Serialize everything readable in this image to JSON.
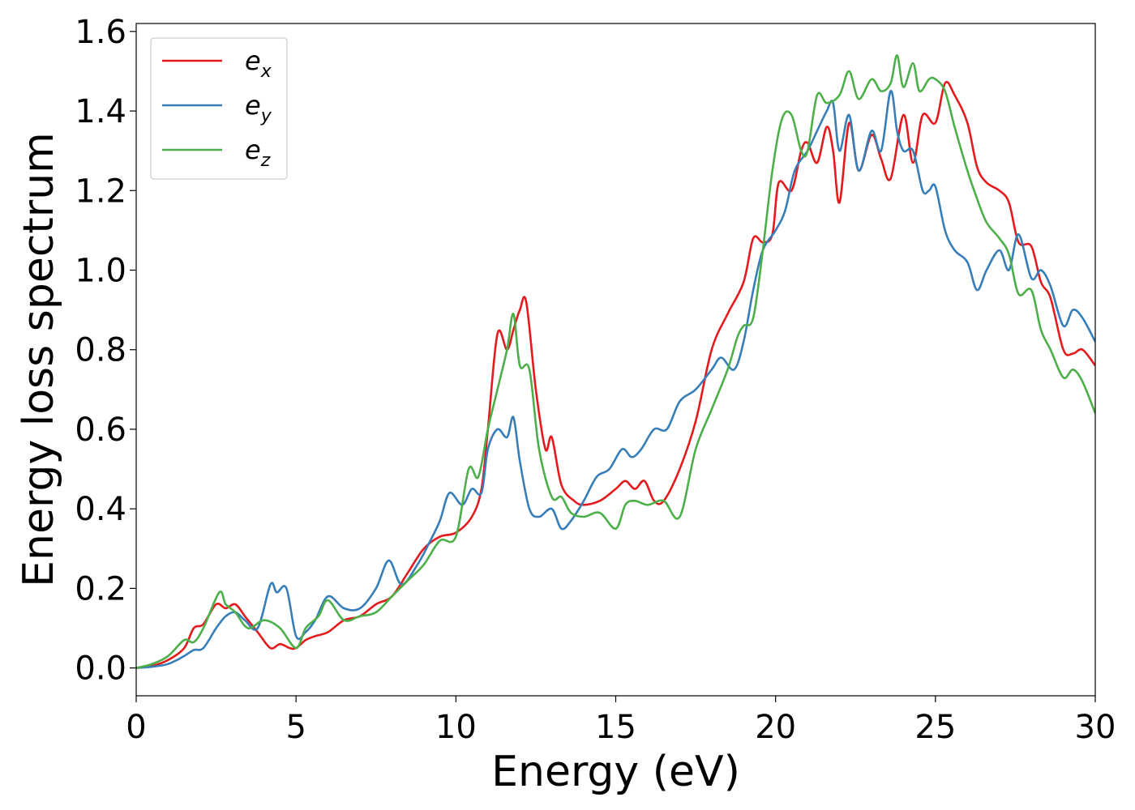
{
  "chart_data": {
    "type": "line",
    "xlabel": "Energy (eV)",
    "ylabel": "Energy loss spectrum",
    "xlim": [
      0,
      30
    ],
    "ylim": [
      -0.07,
      1.62
    ],
    "xticks": [
      0,
      5,
      10,
      15,
      20,
      25,
      30
    ],
    "yticks": [
      0.0,
      0.2,
      0.4,
      0.6,
      0.8,
      1.0,
      1.2,
      1.4,
      1.6
    ],
    "xtick_labels": [
      "0",
      "5",
      "10",
      "15",
      "20",
      "25",
      "30"
    ],
    "ytick_labels": [
      "0.0",
      "0.2",
      "0.4",
      "0.6",
      "0.8",
      "1.0",
      "1.2",
      "1.4",
      "1.6"
    ],
    "grid": false,
    "legend_position": "top-left",
    "series": [
      {
        "name": "e",
        "subscript": "x",
        "color": "#e41a1c",
        "x": [
          0,
          0.5,
          1,
          1.5,
          1.8,
          2.1,
          2.5,
          2.8,
          3.1,
          3.4,
          3.8,
          4.2,
          4.5,
          4.8,
          5.0,
          5.3,
          5.6,
          6.0,
          6.5,
          7.0,
          7.5,
          8.0,
          8.5,
          9.0,
          9.5,
          10.0,
          10.5,
          10.8,
          11.0,
          11.3,
          11.6,
          11.8,
          12.0,
          12.2,
          12.5,
          12.8,
          13.0,
          13.3,
          13.7,
          14.0,
          14.5,
          15.0,
          15.3,
          15.6,
          15.9,
          16.2,
          16.5,
          17.0,
          17.5,
          18.0,
          18.5,
          19.0,
          19.3,
          19.6,
          19.9,
          20.1,
          20.5,
          20.8,
          21.0,
          21.3,
          21.6,
          21.8,
          22.0,
          22.3,
          22.6,
          23.0,
          23.3,
          23.6,
          24.0,
          24.3,
          24.6,
          25.0,
          25.3,
          25.6,
          26.0,
          26.3,
          26.6,
          27.0,
          27.3,
          27.6,
          28.0,
          28.3,
          28.6,
          29.0,
          29.3,
          29.6,
          30.0
        ],
        "y": [
          0.0,
          0.005,
          0.02,
          0.05,
          0.1,
          0.11,
          0.16,
          0.15,
          0.16,
          0.13,
          0.09,
          0.05,
          0.06,
          0.05,
          0.05,
          0.07,
          0.08,
          0.09,
          0.12,
          0.13,
          0.16,
          0.18,
          0.24,
          0.3,
          0.33,
          0.34,
          0.38,
          0.45,
          0.6,
          0.84,
          0.8,
          0.85,
          0.9,
          0.92,
          0.7,
          0.55,
          0.58,
          0.46,
          0.42,
          0.41,
          0.42,
          0.45,
          0.47,
          0.45,
          0.47,
          0.42,
          0.42,
          0.5,
          0.62,
          0.8,
          0.89,
          0.97,
          1.08,
          1.07,
          1.09,
          1.22,
          1.2,
          1.3,
          1.32,
          1.27,
          1.36,
          1.3,
          1.17,
          1.37,
          1.25,
          1.34,
          1.28,
          1.23,
          1.39,
          1.27,
          1.39,
          1.37,
          1.47,
          1.44,
          1.37,
          1.26,
          1.22,
          1.2,
          1.17,
          1.07,
          1.06,
          0.97,
          0.93,
          0.8,
          0.79,
          0.8,
          0.76
        ]
      },
      {
        "name": "e",
        "subscript": "y",
        "color": "#377eb8",
        "x": [
          0,
          0.5,
          1,
          1.5,
          1.8,
          2.1,
          2.5,
          2.8,
          3.1,
          3.4,
          3.8,
          4.2,
          4.4,
          4.7,
          5.0,
          5.3,
          5.6,
          6.0,
          6.5,
          7.0,
          7.5,
          7.9,
          8.3,
          8.8,
          9.2,
          9.5,
          9.8,
          10.2,
          10.5,
          10.8,
          11.0,
          11.3,
          11.6,
          11.8,
          12.0,
          12.3,
          12.6,
          13.0,
          13.3,
          13.6,
          14.0,
          14.4,
          14.8,
          15.2,
          15.5,
          15.8,
          16.2,
          16.6,
          17.0,
          17.5,
          18.0,
          18.3,
          18.7,
          19.0,
          19.3,
          19.6,
          20.0,
          20.3,
          20.6,
          21.0,
          21.3,
          21.6,
          21.8,
          22.0,
          22.3,
          22.6,
          23.0,
          23.3,
          23.6,
          23.8,
          24.0,
          24.3,
          24.6,
          24.8,
          25.0,
          25.3,
          25.6,
          26.0,
          26.3,
          26.6,
          27.0,
          27.3,
          27.6,
          28.0,
          28.3,
          28.6,
          29.0,
          29.3,
          29.6,
          30.0
        ],
        "y": [
          0.0,
          0.003,
          0.01,
          0.03,
          0.045,
          0.05,
          0.1,
          0.13,
          0.14,
          0.12,
          0.1,
          0.21,
          0.19,
          0.2,
          0.08,
          0.09,
          0.12,
          0.18,
          0.15,
          0.15,
          0.2,
          0.27,
          0.21,
          0.26,
          0.32,
          0.37,
          0.44,
          0.41,
          0.45,
          0.44,
          0.55,
          0.6,
          0.58,
          0.63,
          0.52,
          0.4,
          0.38,
          0.4,
          0.35,
          0.37,
          0.42,
          0.48,
          0.5,
          0.55,
          0.53,
          0.55,
          0.6,
          0.6,
          0.67,
          0.7,
          0.75,
          0.78,
          0.75,
          0.82,
          0.95,
          1.05,
          1.1,
          1.15,
          1.25,
          1.3,
          1.35,
          1.4,
          1.42,
          1.3,
          1.39,
          1.25,
          1.35,
          1.3,
          1.45,
          1.35,
          1.3,
          1.3,
          1.2,
          1.2,
          1.21,
          1.1,
          1.05,
          1.02,
          0.95,
          1.0,
          1.05,
          1.0,
          1.09,
          0.98,
          1.0,
          0.96,
          0.86,
          0.9,
          0.88,
          0.82
        ]
      },
      {
        "name": "e",
        "subscript": "z",
        "color": "#4daf4a",
        "x": [
          0,
          0.5,
          1,
          1.5,
          1.8,
          2.1,
          2.6,
          2.8,
          3.1,
          3.5,
          4.0,
          4.5,
          5.0,
          5.3,
          5.7,
          6.0,
          6.5,
          7.0,
          7.5,
          8.0,
          8.5,
          9.0,
          9.5,
          10.0,
          10.4,
          10.7,
          11.0,
          11.3,
          11.6,
          11.8,
          12.0,
          12.3,
          12.6,
          13.0,
          13.3,
          13.6,
          14.0,
          14.5,
          15.0,
          15.3,
          15.6,
          16.0,
          16.5,
          17.0,
          17.5,
          18.0,
          18.5,
          18.8,
          19.0,
          19.3,
          19.6,
          19.9,
          20.2,
          20.5,
          20.8,
          21.0,
          21.3,
          21.6,
          22.0,
          22.3,
          22.6,
          23.0,
          23.3,
          23.6,
          23.8,
          24.0,
          24.3,
          24.5,
          24.8,
          25.0,
          25.3,
          25.6,
          26.0,
          26.3,
          26.6,
          27.0,
          27.3,
          27.6,
          28.0,
          28.3,
          28.6,
          29.0,
          29.3,
          29.6,
          30.0
        ],
        "y": [
          0.0,
          0.01,
          0.03,
          0.07,
          0.065,
          0.1,
          0.19,
          0.16,
          0.14,
          0.1,
          0.12,
          0.1,
          0.05,
          0.1,
          0.13,
          0.17,
          0.12,
          0.13,
          0.14,
          0.18,
          0.22,
          0.26,
          0.32,
          0.33,
          0.5,
          0.48,
          0.6,
          0.7,
          0.8,
          0.89,
          0.76,
          0.75,
          0.55,
          0.43,
          0.43,
          0.39,
          0.38,
          0.39,
          0.35,
          0.41,
          0.42,
          0.41,
          0.42,
          0.38,
          0.55,
          0.65,
          0.75,
          0.83,
          0.86,
          0.88,
          1.05,
          1.25,
          1.38,
          1.39,
          1.3,
          1.3,
          1.44,
          1.42,
          1.44,
          1.5,
          1.43,
          1.48,
          1.45,
          1.47,
          1.54,
          1.46,
          1.52,
          1.45,
          1.48,
          1.48,
          1.45,
          1.36,
          1.25,
          1.18,
          1.12,
          1.08,
          1.04,
          0.94,
          0.95,
          0.85,
          0.8,
          0.73,
          0.75,
          0.72,
          0.64
        ]
      }
    ]
  }
}
